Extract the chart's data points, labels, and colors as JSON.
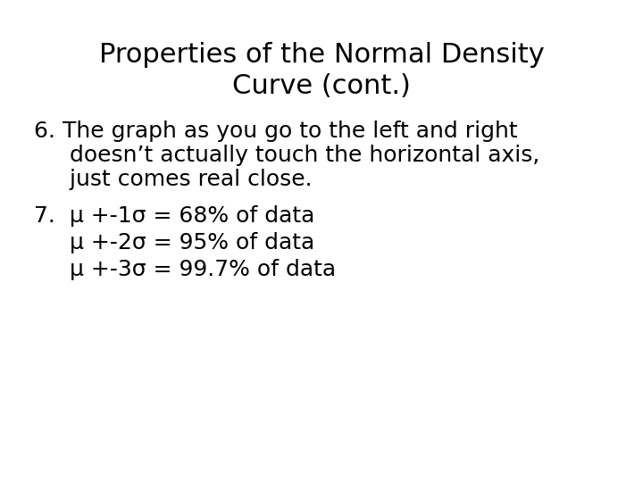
{
  "title_line1": "Properties of the Normal Density",
  "title_line2": "Curve (cont.)",
  "point6_line1": "6. The graph as you go to the left and right",
  "point6_line2": "     doesn’t actually touch the horizontal axis,",
  "point6_line3": "     just comes real close.",
  "point7_line1": "7.  μ +-1σ = 68% of data",
  "point7_line2": "     μ +-2σ = 95% of data",
  "point7_line3": "     μ +-3σ = 99.7% of data",
  "background_color": "#ffffff",
  "text_color": "#000000",
  "title_fontsize": 22,
  "body_fontsize": 18
}
